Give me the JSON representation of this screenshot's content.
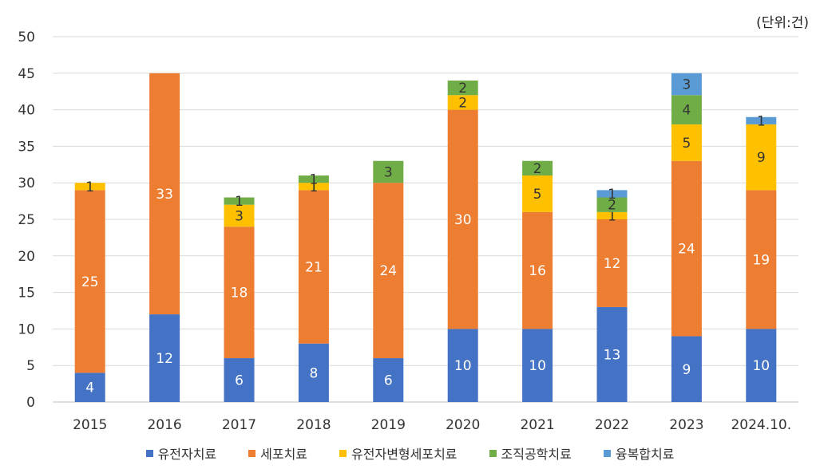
{
  "chart_data": {
    "type": "bar",
    "stacked": true,
    "unit_label": "(단위:건)",
    "categories": [
      "2015",
      "2016",
      "2017",
      "2018",
      "2019",
      "2020",
      "2021",
      "2022",
      "2023",
      "2024.10."
    ],
    "series": [
      {
        "name": "유전자치료",
        "color": "#4472C4",
        "label_color": "#ffffff",
        "values": [
          4,
          12,
          6,
          8,
          6,
          10,
          10,
          13,
          9,
          10
        ]
      },
      {
        "name": "세포치료",
        "color": "#ED7D31",
        "label_color": "#ffffff",
        "values": [
          25,
          33,
          18,
          21,
          24,
          30,
          16,
          12,
          24,
          19
        ]
      },
      {
        "name": "유전자변형세포치료",
        "color": "#FFC000",
        "label_color": "#333333",
        "values": [
          1,
          0,
          3,
          1,
          0,
          2,
          5,
          1,
          5,
          9
        ]
      },
      {
        "name": "조직공학치료",
        "color": "#70AD47",
        "label_color": "#333333",
        "values": [
          0,
          0,
          1,
          1,
          3,
          2,
          2,
          2,
          4,
          0
        ]
      },
      {
        "name": "융복합치료",
        "color": "#5B9BD5",
        "label_color": "#333333",
        "values": [
          0,
          0,
          0,
          0,
          0,
          0,
          0,
          1,
          3,
          1
        ]
      }
    ],
    "ylim": [
      0,
      50
    ],
    "yticks": [
      0,
      5,
      10,
      15,
      20,
      25,
      30,
      35,
      40,
      45,
      50
    ],
    "grid": true,
    "legend_position": "bottom"
  }
}
